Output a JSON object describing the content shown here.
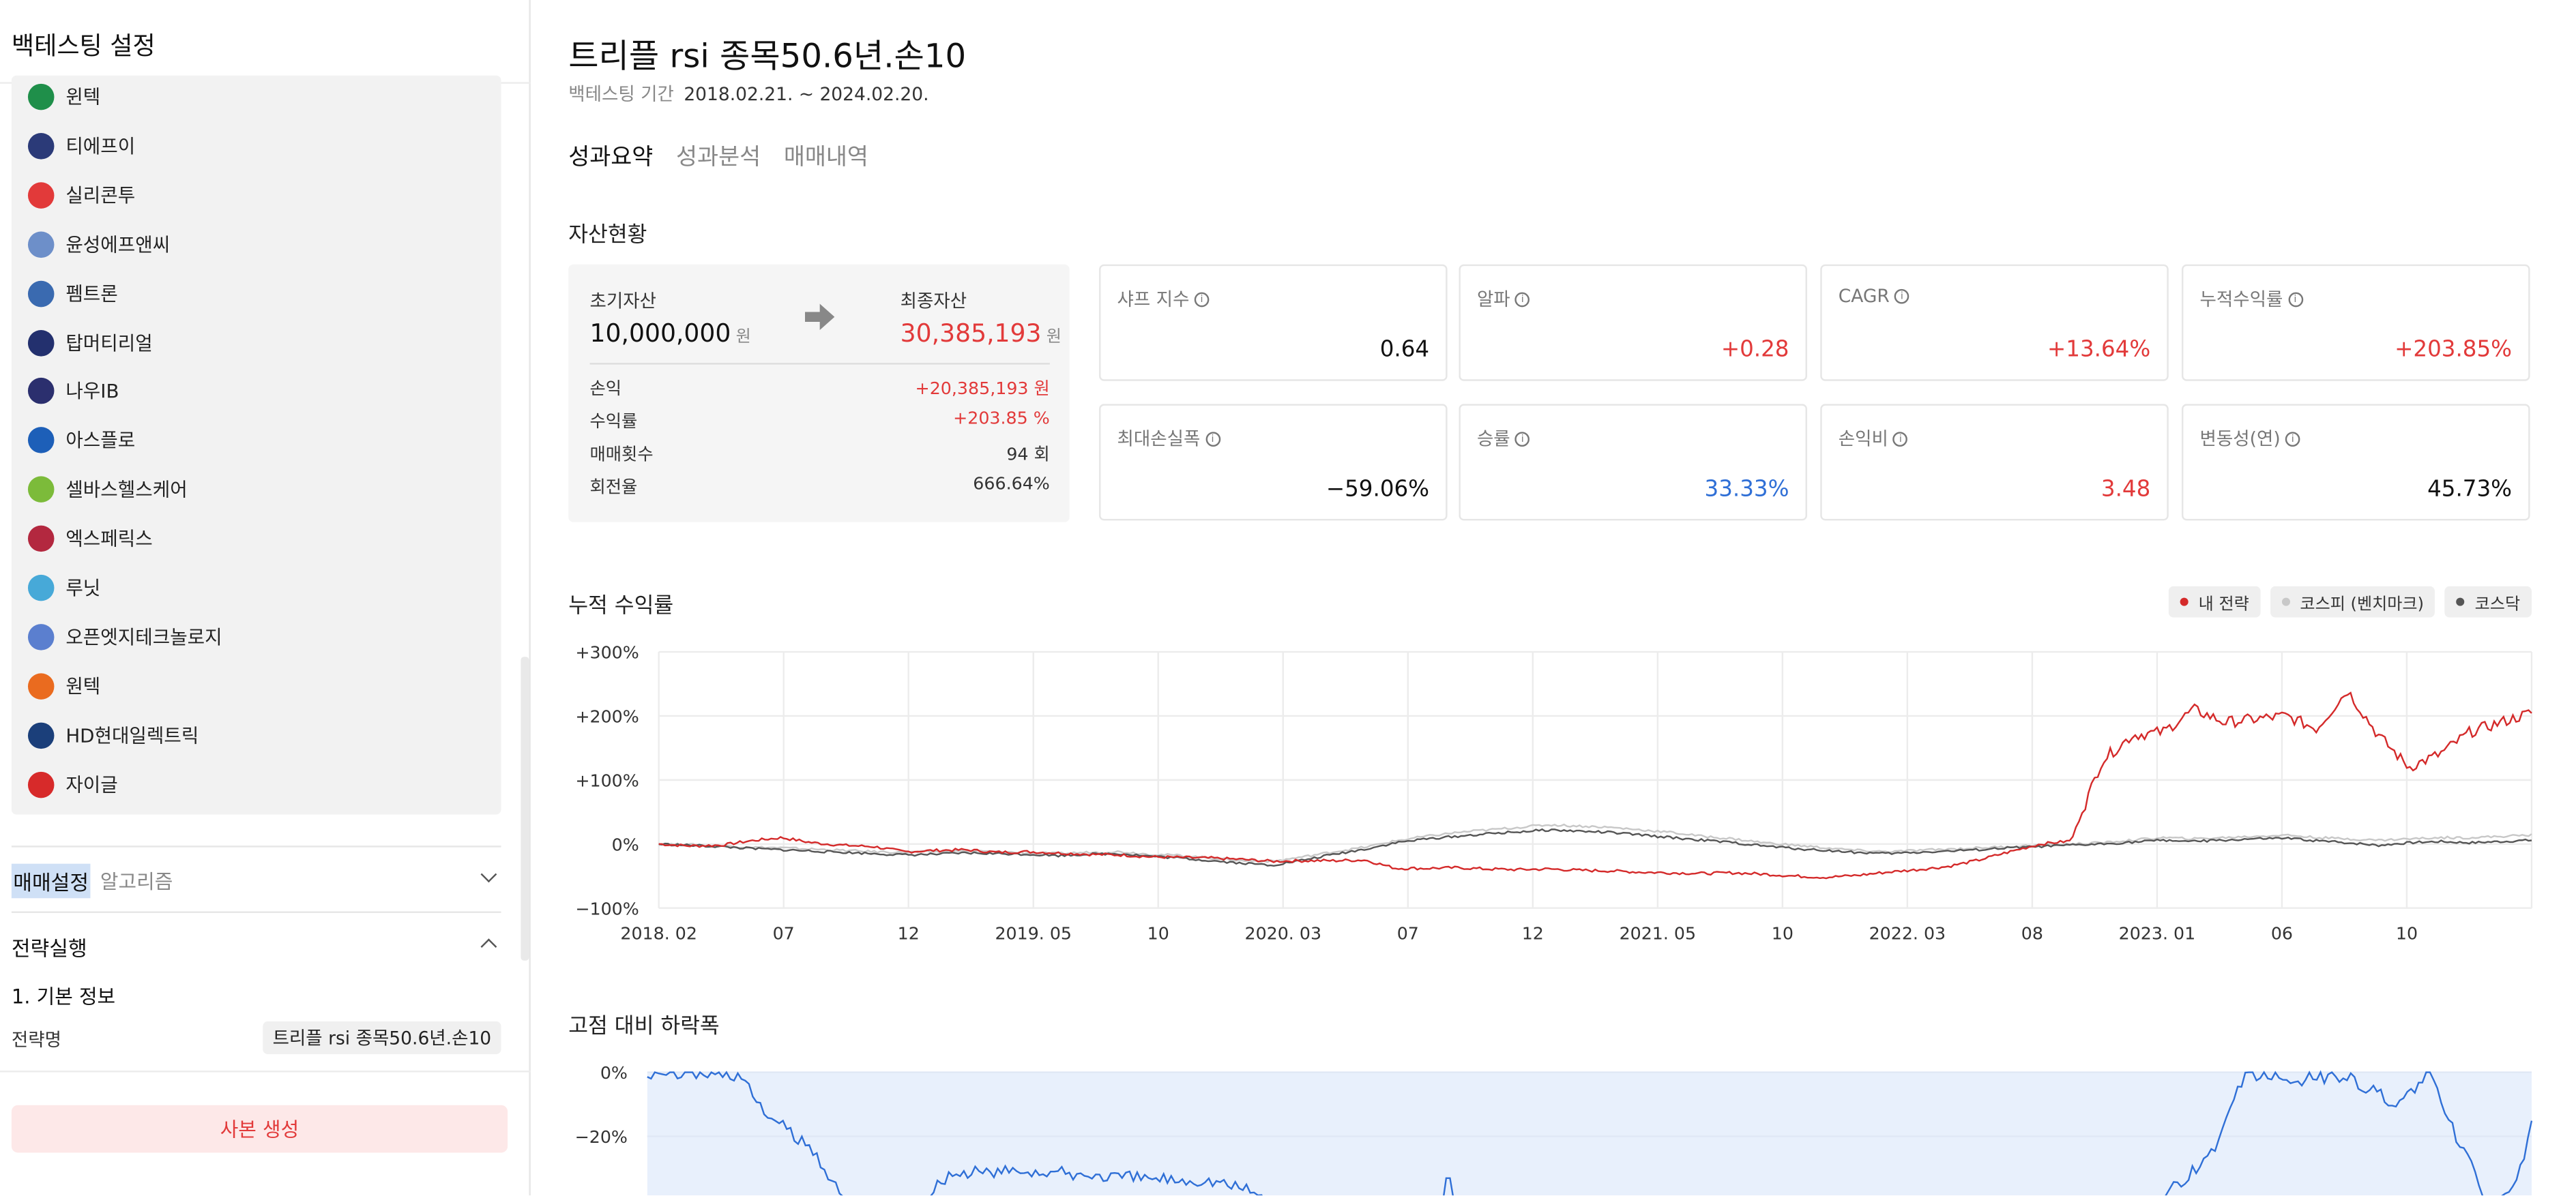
{
  "sidebar": {
    "title": "백테스팅 설정",
    "companies": [
      {
        "name": "윈텍",
        "color": "#1f8f4a"
      },
      {
        "name": "티에프이",
        "color": "#2b3a78"
      },
      {
        "name": "실리콘투",
        "color": "#e23a3a"
      },
      {
        "name": "윤성에프앤씨",
        "color": "#6d8fc9"
      },
      {
        "name": "펨트론",
        "color": "#3a6ab0"
      },
      {
        "name": "탑머티리얼",
        "color": "#23306e"
      },
      {
        "name": "나우IB",
        "color": "#2b2f6e"
      },
      {
        "name": "아스플로",
        "color": "#1d5fb8"
      },
      {
        "name": "셀바스헬스케어",
        "color": "#7cbb3a"
      },
      {
        "name": "엑스페릭스",
        "color": "#b3283f"
      },
      {
        "name": "루닛",
        "color": "#47a9d8"
      },
      {
        "name": "오픈엣지테크놀로지",
        "color": "#5b7fcf"
      },
      {
        "name": "원텍",
        "color": "#ea6b1f"
      },
      {
        "name": "HD현대일렉트릭",
        "color": "#1b3f7a"
      },
      {
        "name": "자이글",
        "color": "#d72a2a"
      }
    ],
    "trade_settings": {
      "title": "매매설정",
      "subtitle": "알고리즘"
    },
    "strategy_run": {
      "title": "전략실행"
    },
    "basic_info": "1. 기본 정보",
    "strategy_name_label": "전략명",
    "strategy_name_value": "트리플 rsi 종목50.6년.손10",
    "copy_button": "사본 생성"
  },
  "main": {
    "title": "트리플 rsi 종목50.6년.손10",
    "period_label": "백테스팅 기간",
    "period_value": "2018.02.21. ~ 2024.02.20.",
    "tabs": [
      "성과요약",
      "성과분석",
      "매매내역"
    ],
    "asset_section_title": "자산현황",
    "asset": {
      "initial_label": "초기자산",
      "initial_value": "10,000,000",
      "final_label": "최종자산",
      "final_value": "30,385,193",
      "unit": "원",
      "rows": [
        {
          "label": "손익",
          "value": "+20,385,193 원"
        },
        {
          "label": "수익률",
          "value": "+203.85 %"
        },
        {
          "label": "매매횟수",
          "value": "94 회"
        },
        {
          "label": "회전율",
          "value": "666.64%"
        }
      ]
    },
    "metrics": [
      {
        "label": "샤프 지수",
        "value": "0.64"
      },
      {
        "label": "알파",
        "value": "+0.28"
      },
      {
        "label": "CAGR",
        "value": "+13.64%"
      },
      {
        "label": "누적수익률",
        "value": "+203.85%"
      },
      {
        "label": "최대손실폭",
        "value": "−59.06%"
      },
      {
        "label": "승률",
        "value": "33.33%"
      },
      {
        "label": "손익비",
        "value": "3.48"
      },
      {
        "label": "변동성(연)",
        "value": "45.73%"
      }
    ],
    "cum_section_title": "누적 수익률",
    "legend": [
      {
        "name": "내 전략",
        "color": "#d42a2a"
      },
      {
        "name": "코스피 (벤치마크)",
        "color": "#c8c8c8"
      },
      {
        "name": "코스닥",
        "color": "#555555"
      }
    ],
    "dd_section_title": "고점 대비 하락폭"
  },
  "chart_data": [
    {
      "type": "line",
      "yticks": [
        "+300%",
        "+200%",
        "+100%",
        "0%",
        "−100%"
      ],
      "xticks": [
        "2018. 02",
        "07",
        "12",
        "2019. 05",
        "10",
        "2020. 03",
        "07",
        "12",
        "2021. 05",
        "10",
        "2022. 03",
        "08",
        "2023. 01",
        "06",
        "10"
      ],
      "ylim": [
        -100,
        300
      ],
      "series": [
        {
          "name": "내 전략",
          "color": "#d42a2a",
          "values": [
            0,
            -3,
            -2,
            5,
            10,
            2,
            -2,
            -4,
            -12,
            -10,
            -9,
            -13,
            -12,
            -14,
            -16,
            -17,
            -20,
            -21,
            -22,
            -24,
            -27,
            -26,
            -26,
            -25,
            -38,
            -38,
            -37,
            -39,
            -40,
            -39,
            -41,
            -42,
            -44,
            -45,
            -46,
            -45,
            -47,
            -50,
            -52,
            -49,
            -44,
            -40,
            -35,
            -25,
            -12,
            0,
            5,
            130,
            170,
            175,
            210,
            190,
            195,
            200,
            180,
            240,
            170,
            120,
            140,
            175,
            190,
            205
          ]
        },
        {
          "name": "코스피 (벤치마크)",
          "color": "#c8c8c8",
          "values": [
            0,
            -1,
            -3,
            -5,
            -6,
            -8,
            -10,
            -12,
            -13,
            -12,
            -11,
            -12,
            -14,
            -15,
            -13,
            -12,
            -16,
            -18,
            -22,
            -26,
            -27,
            -20,
            -12,
            -5,
            5,
            12,
            18,
            22,
            26,
            30,
            28,
            26,
            22,
            18,
            12,
            8,
            2,
            -2,
            -6,
            -10,
            -12,
            -10,
            -8,
            -6,
            -4,
            -2,
            0,
            2,
            6,
            10,
            8,
            10,
            12,
            14,
            10,
            8,
            6,
            8,
            10,
            10,
            12,
            14
          ]
        },
        {
          "name": "코스닥",
          "color": "#555555",
          "values": [
            0,
            -2,
            -4,
            -7,
            -9,
            -11,
            -13,
            -15,
            -17,
            -16,
            -14,
            -15,
            -16,
            -18,
            -16,
            -15,
            -19,
            -22,
            -26,
            -30,
            -33,
            -25,
            -16,
            -8,
            2,
            8,
            12,
            16,
            19,
            22,
            20,
            18,
            14,
            10,
            6,
            2,
            -3,
            -7,
            -10,
            -13,
            -15,
            -13,
            -11,
            -9,
            -6,
            -4,
            -2,
            0,
            3,
            6,
            4,
            6,
            8,
            9,
            5,
            2,
            -2,
            2,
            4,
            2,
            4,
            6
          ]
        }
      ]
    },
    {
      "type": "area",
      "yticks": [
        "0%",
        "−20%"
      ],
      "series": [
        {
          "name": "고점 대비 하락폭",
          "color": "#2f6fd6"
        }
      ]
    }
  ]
}
